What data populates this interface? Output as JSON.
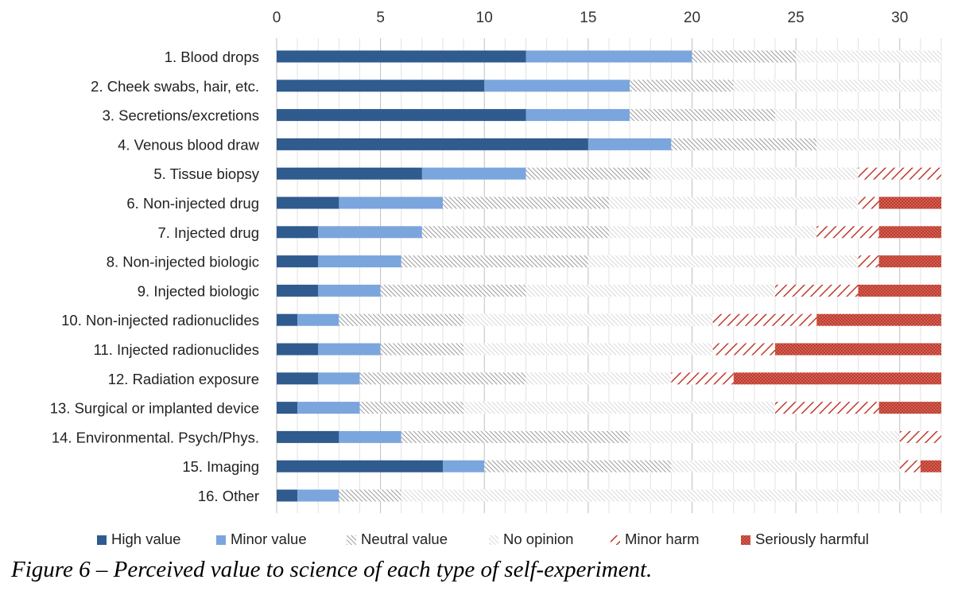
{
  "caption": "Figure 6 – Perceived value to science of each type of self-experiment.",
  "chart_data": {
    "type": "bar",
    "orientation": "horizontal",
    "stacked": true,
    "title": "",
    "xlabel": "",
    "ylabel": "",
    "xlim": [
      0,
      32
    ],
    "xticks": [
      0,
      5,
      10,
      15,
      20,
      25,
      30
    ],
    "x_axis_position": "top",
    "grid": true,
    "legend_position": "bottom",
    "categories": [
      "1. Blood drops",
      "2. Cheek swabs, hair, etc.",
      "3. Secretions/excretions",
      "4. Venous blood draw",
      "5. Tissue biopsy",
      "6. Non-injected drug",
      "7. Injected drug",
      "8. Non-injected biologic",
      "9. Injected biologic",
      "10. Non-injected radionuclides",
      "11. Injected radionuclides",
      "12. Radiation exposure",
      "13. Surgical or implanted device",
      "14. Environmental. Psych/Phys.",
      "15. Imaging",
      "16. Other"
    ],
    "series": [
      {
        "name": "High value",
        "color": "#2f5b8e",
        "pattern": "solid",
        "values": [
          12,
          10,
          12,
          15,
          7,
          3,
          2,
          2,
          2,
          1,
          2,
          2,
          1,
          3,
          8,
          1
        ]
      },
      {
        "name": "Minor value",
        "color": "#7ba5dd",
        "pattern": "solid",
        "values": [
          8,
          7,
          5,
          4,
          5,
          5,
          5,
          4,
          3,
          2,
          3,
          2,
          3,
          3,
          2,
          2
        ]
      },
      {
        "name": "Neutral value",
        "color": "#a9a9a9",
        "pattern": "dense-diagonal",
        "values": [
          5,
          5,
          7,
          7,
          6,
          8,
          9,
          9,
          7,
          6,
          4,
          8,
          5,
          11,
          9,
          3
        ]
      },
      {
        "name": "No opinion",
        "color": "#c8c8c8",
        "pattern": "light-diagonal",
        "values": [
          7,
          10,
          8,
          6,
          10,
          12,
          10,
          13,
          12,
          12,
          12,
          7,
          15,
          13,
          11,
          26
        ]
      },
      {
        "name": "Minor harm",
        "color": "#c0392b",
        "pattern": "wide-diagonal",
        "values": [
          0,
          0,
          0,
          0,
          4,
          1,
          3,
          1,
          4,
          5,
          3,
          3,
          5,
          2,
          1,
          0
        ]
      },
      {
        "name": "Seriously harmful",
        "color": "#c0392b",
        "pattern": "dotted",
        "values": [
          0,
          0,
          0,
          0,
          0,
          3,
          3,
          3,
          4,
          6,
          8,
          10,
          3,
          0,
          1,
          0
        ]
      }
    ]
  }
}
